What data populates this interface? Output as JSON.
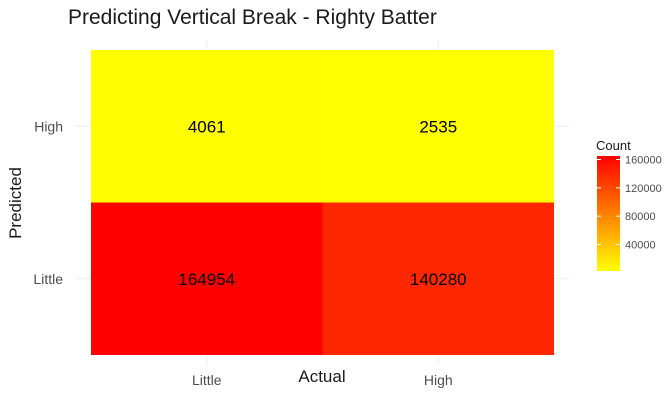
{
  "chart_data": {
    "type": "heatmap",
    "title": "Predicting Vertical Break - Righty Batter",
    "xlabel": "Actual",
    "ylabel": "Predicted",
    "x_categories": [
      "Little",
      "High"
    ],
    "y_categories": [
      "Little",
      "High"
    ],
    "cells": [
      {
        "actual": "Little",
        "predicted": "High",
        "value": 4061
      },
      {
        "actual": "High",
        "predicted": "High",
        "value": 2535
      },
      {
        "actual": "Little",
        "predicted": "Little",
        "value": 164954
      },
      {
        "actual": "High",
        "predicted": "Little",
        "value": 140280
      }
    ],
    "legend": {
      "title": "Count",
      "ticks": [
        40000,
        80000,
        120000,
        160000
      ],
      "range": [
        2535,
        164954
      ],
      "low_color": "#ffff00",
      "high_color": "#ff0000"
    },
    "grid": true
  }
}
